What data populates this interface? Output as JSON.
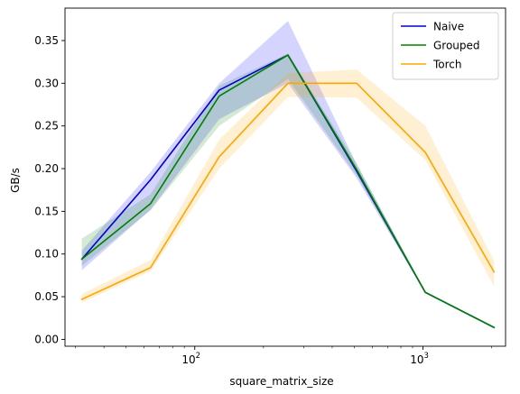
{
  "chart_data": {
    "type": "line",
    "title": "",
    "xlabel": "square_matrix_size",
    "ylabel": "GB/s",
    "xscale": "log",
    "xlim": [
      27,
      2300
    ],
    "ylim": [
      -0.008,
      0.388
    ],
    "x_ticks": [
      {
        "value": 100,
        "base": "10",
        "exp": "2"
      },
      {
        "value": 1000,
        "base": "10",
        "exp": "3"
      }
    ],
    "y_ticks": [
      0.0,
      0.05,
      0.1,
      0.15,
      0.2,
      0.25,
      0.3,
      0.35
    ],
    "y_tick_labels": [
      "0.00",
      "0.05",
      "0.10",
      "0.15",
      "0.20",
      "0.25",
      "0.30",
      "0.35"
    ],
    "grid": false,
    "legend_position": "top-right",
    "x": [
      32,
      64,
      128,
      256,
      512,
      1024,
      2048
    ],
    "series": [
      {
        "name": "Naive",
        "color": "#0000cc",
        "band_color": "#0000ff",
        "values": [
          0.094,
          0.187,
          0.292,
          0.333,
          0.197,
          0.055,
          0.014
        ],
        "lower": [
          0.081,
          0.152,
          0.258,
          0.3,
          0.189,
          0.054,
          0.013
        ],
        "upper": [
          0.104,
          0.196,
          0.3,
          0.373,
          0.205,
          0.056,
          0.015
        ]
      },
      {
        "name": "Grouped",
        "color": "#008000",
        "band_color": "#008000",
        "values": [
          0.094,
          0.159,
          0.285,
          0.333,
          0.199,
          0.055,
          0.014
        ],
        "lower": [
          0.086,
          0.151,
          0.25,
          0.305,
          0.192,
          0.054,
          0.013
        ],
        "upper": [
          0.118,
          0.17,
          0.297,
          0.335,
          0.206,
          0.056,
          0.015
        ]
      },
      {
        "name": "Torch",
        "color": "#ffa500",
        "band_color": "#ffa500",
        "values": [
          0.047,
          0.084,
          0.214,
          0.3,
          0.3,
          0.219,
          0.079
        ],
        "lower": [
          0.043,
          0.08,
          0.2,
          0.284,
          0.283,
          0.21,
          0.062
        ],
        "upper": [
          0.053,
          0.093,
          0.234,
          0.312,
          0.316,
          0.25,
          0.092
        ]
      }
    ]
  }
}
